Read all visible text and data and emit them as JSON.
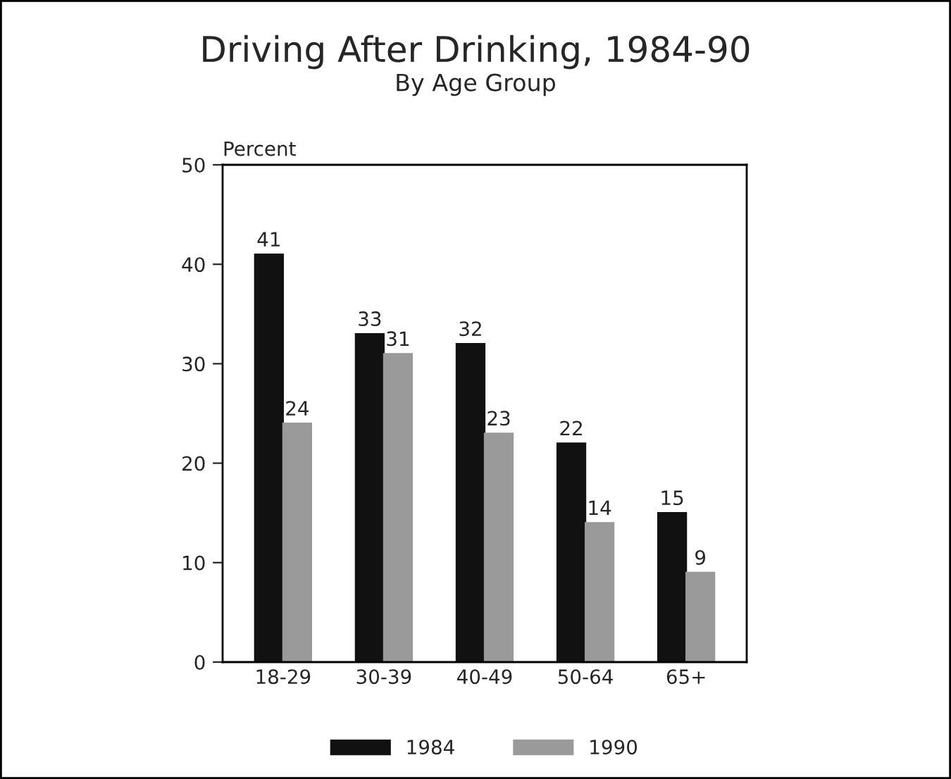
{
  "chart_data": {
    "type": "bar",
    "title": "Driving After Drinking, 1984-90",
    "subtitle": "By Age Group",
    "ylabel": "Percent",
    "categories": [
      "18-29",
      "30-39",
      "40-49",
      "50-64",
      "65+"
    ],
    "series": [
      {
        "name": "1984",
        "color": "#111111",
        "values": [
          41,
          33,
          32,
          22,
          15
        ]
      },
      {
        "name": "1990",
        "color": "#9a9a9a",
        "values": [
          24,
          31,
          23,
          14,
          9
        ]
      }
    ],
    "ylim": [
      0,
      50
    ],
    "yticks": [
      0,
      10,
      20,
      30,
      40,
      50
    ],
    "grid": false,
    "legend": "bottom",
    "data_labels": true
  }
}
